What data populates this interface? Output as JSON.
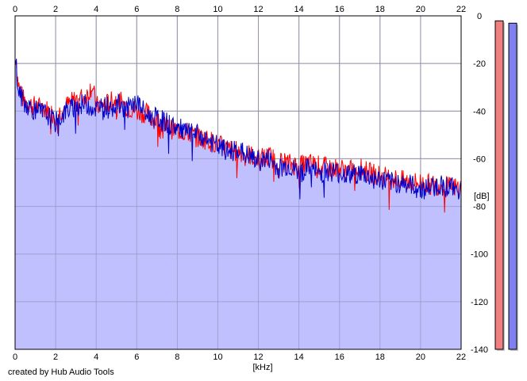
{
  "chart_data": {
    "type": "area",
    "xlabel": "[kHz]",
    "ylabel": "[dB]",
    "xlim": [
      0,
      22
    ],
    "ylim": [
      -140,
      0
    ],
    "x_ticks": [
      0,
      2,
      4,
      6,
      8,
      10,
      12,
      14,
      16,
      18,
      20,
      22
    ],
    "y_ticks": [
      0,
      -20,
      -40,
      -60,
      -80,
      -100,
      -120,
      -140
    ],
    "grid": true,
    "series": [
      {
        "color": "#ff0000",
        "x": [
          0,
          0.05,
          0.1,
          0.2,
          0.4,
          0.7,
          1.0,
          1.5,
          2.0,
          2.5,
          3.0,
          3.5,
          3.8,
          4.0,
          4.5,
          5.0,
          5.5,
          6.0,
          6.5,
          7.0,
          7.5,
          8.0,
          8.5,
          9.0,
          9.5,
          10.0,
          10.5,
          11.0,
          11.5,
          12.0,
          12.5,
          13.0,
          13.5,
          14.0,
          14.5,
          15.0,
          15.5,
          16.0,
          16.5,
          17.0,
          17.5,
          18.0,
          18.5,
          19.0,
          19.5,
          20.0,
          20.5,
          21.0,
          21.5,
          22.0
        ],
        "y": [
          -20,
          -15,
          -25,
          -30,
          -35,
          -37,
          -38,
          -39,
          -42,
          -38,
          -35,
          -34,
          -29,
          -38,
          -37,
          -35,
          -38,
          -40,
          -41,
          -44,
          -47,
          -48,
          -49,
          -51,
          -52,
          -54,
          -56,
          -57,
          -58,
          -60,
          -59,
          -61,
          -62,
          -63,
          -62,
          -63,
          -64,
          -64,
          -65,
          -64,
          -66,
          -67,
          -68,
          -69,
          -70,
          -70,
          -71,
          -71,
          -72,
          -72
        ]
      },
      {
        "color": "#0000cc",
        "x": [
          0,
          0.05,
          0.1,
          0.2,
          0.4,
          0.7,
          1.0,
          1.5,
          2.0,
          2.5,
          3.0,
          3.5,
          4.0,
          4.5,
          5.0,
          5.5,
          6.0,
          6.5,
          7.0,
          7.5,
          8.0,
          8.5,
          9.0,
          9.5,
          10.0,
          10.5,
          11.0,
          11.5,
          12.0,
          12.5,
          13.0,
          13.5,
          14.0,
          14.5,
          15.0,
          15.5,
          16.0,
          16.5,
          17.0,
          17.5,
          18.0,
          18.5,
          19.0,
          19.5,
          20.0,
          20.5,
          21.0,
          21.5,
          22.0
        ],
        "y": [
          -22,
          -18,
          -28,
          -32,
          -36,
          -38,
          -40,
          -41,
          -45,
          -40,
          -38,
          -37,
          -39,
          -38,
          -37,
          -39,
          -36,
          -42,
          -43,
          -45,
          -47,
          -49,
          -50,
          -52,
          -55,
          -57,
          -56,
          -59,
          -61,
          -60,
          -64,
          -63,
          -66,
          -64,
          -66,
          -65,
          -66,
          -67,
          -66,
          -68,
          -69,
          -70,
          -70,
          -71,
          -73,
          -72,
          -71,
          -72,
          -73
        ]
      }
    ],
    "fill_color": "#c0c0ff",
    "credit": "created by Hub Audio Tools"
  },
  "meters": [
    {
      "color": "#f08080",
      "level": 0.985
    },
    {
      "color": "#8080f0",
      "level": 0.978
    }
  ]
}
